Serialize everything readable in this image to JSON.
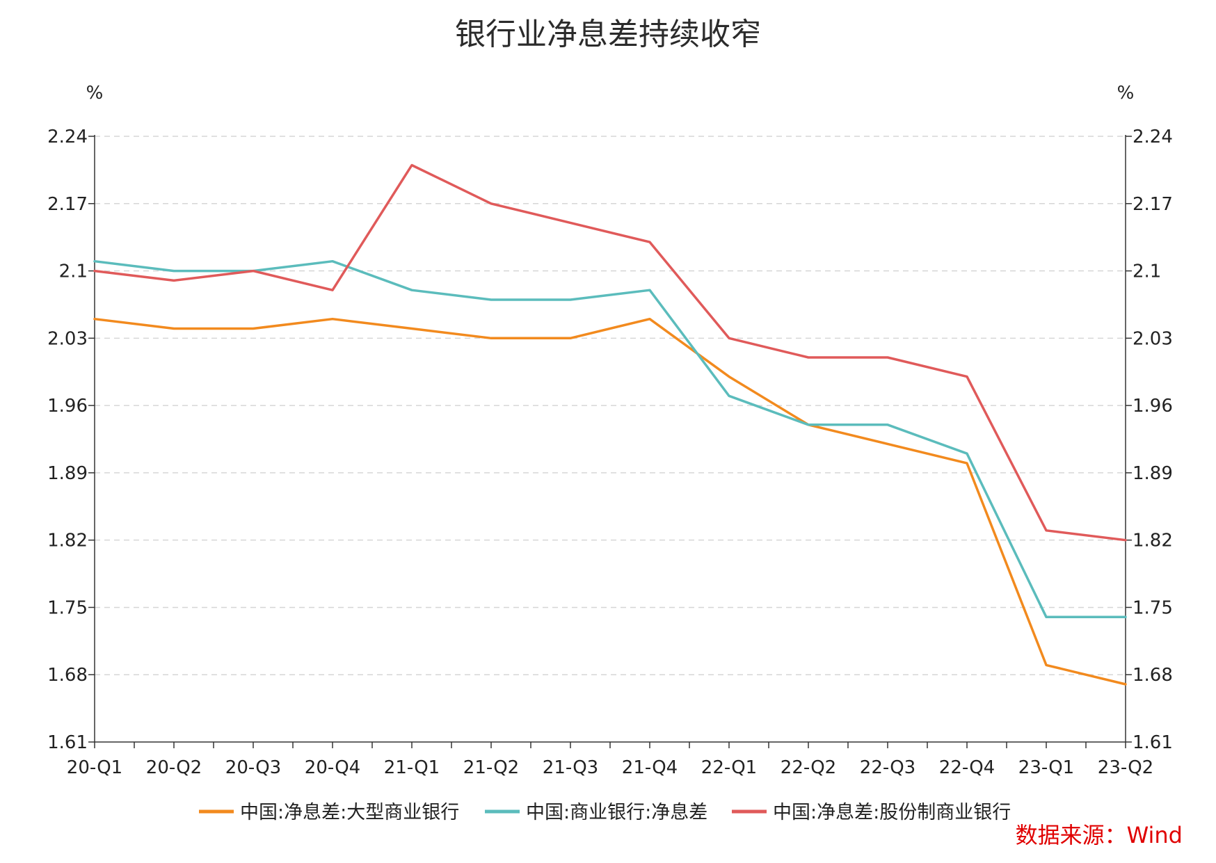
{
  "chart_data": {
    "type": "line",
    "title": "银行业净息差持续收窄",
    "ylabel_left": "%",
    "ylabel_right": "%",
    "categories": [
      "20-Q1",
      "20-Q2",
      "20-Q3",
      "20-Q4",
      "21-Q1",
      "21-Q2",
      "21-Q3",
      "21-Q4",
      "22-Q1",
      "22-Q2",
      "22-Q3",
      "22-Q4",
      "23-Q1",
      "23-Q2"
    ],
    "ylim": [
      1.61,
      2.24
    ],
    "yticks": [
      "1.61",
      "1.68",
      "1.75",
      "1.82",
      "1.89",
      "1.96",
      "2.03",
      "2.1",
      "2.17",
      "2.24"
    ],
    "grid": true,
    "legend_position": "bottom",
    "series": [
      {
        "name": "中国:净息差:大型商业银行",
        "color": "#f28a1e",
        "values": [
          2.05,
          2.04,
          2.04,
          2.05,
          2.04,
          2.03,
          2.03,
          2.05,
          1.99,
          1.94,
          1.92,
          1.9,
          1.69,
          1.67
        ]
      },
      {
        "name": "中国:商业银行:净息差",
        "color": "#5bbcbc",
        "values": [
          2.11,
          2.1,
          2.1,
          2.11,
          2.08,
          2.07,
          2.07,
          2.08,
          1.97,
          1.94,
          1.94,
          1.91,
          1.74,
          1.74
        ]
      },
      {
        "name": "中国:净息差:股份制商业银行",
        "color": "#e05a5a",
        "values": [
          2.1,
          2.09,
          2.1,
          2.08,
          2.21,
          2.17,
          2.15,
          2.13,
          2.03,
          2.01,
          2.01,
          1.99,
          1.83,
          1.82
        ]
      }
    ],
    "source_note": "数据来源：Wind"
  }
}
